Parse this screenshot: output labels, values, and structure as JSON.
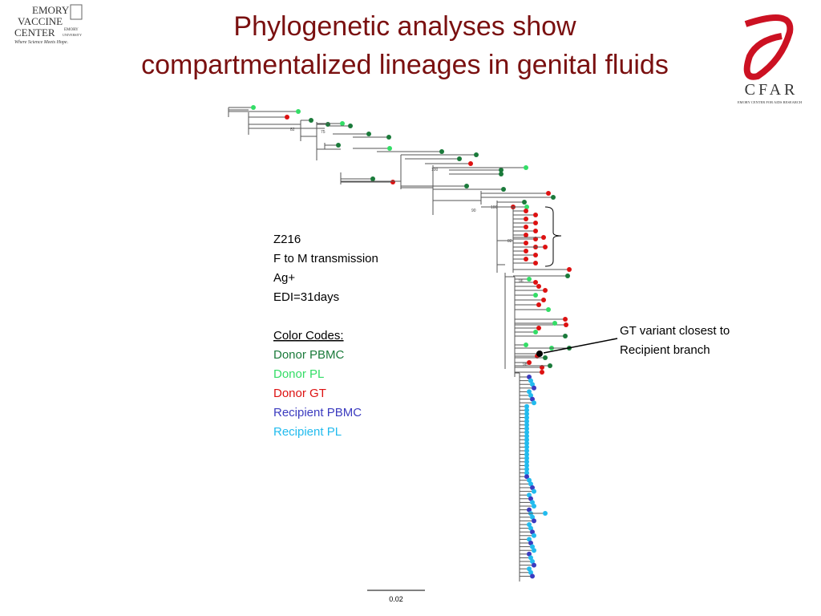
{
  "header": {
    "title_line1": "Phylogenetic analyses show",
    "title_line2": "compartmentalized lineages in genital fluids"
  },
  "logos": {
    "left_line1": "EMORY",
    "left_line2": "VACCINE",
    "left_line3": "CENTER",
    "left_sub1": "EMORY",
    "left_sub2": "UNIVERSITY",
    "left_tagline": "Where Science Meets Hope.",
    "right_name": "CFAR",
    "right_sub": "EMORY CENTER FOR AIDS RESEARCH"
  },
  "info": {
    "lines": [
      "Z216",
      "F to M transmission",
      "Ag+",
      "EDI=31days"
    ]
  },
  "legend": {
    "title": "Color Codes:",
    "items": [
      {
        "name": "Donor PBMC",
        "color": "#1a7a3a"
      },
      {
        "name": "Donor PL",
        "color": "#33dd66"
      },
      {
        "name": "Donor GT",
        "color": "#dd1111"
      },
      {
        "name": "Recipient PBMC",
        "color": "#3b3bbf"
      },
      {
        "name": "Recipient PL",
        "color": "#22bbee"
      }
    ]
  },
  "annotation": {
    "line1": "GT variant closest to",
    "line2": "Recipient branch"
  },
  "scale_bar": "0.02",
  "bootstrap": [
    "82",
    "75",
    "100",
    "90",
    "100",
    "82",
    "96",
    "98"
  ]
}
